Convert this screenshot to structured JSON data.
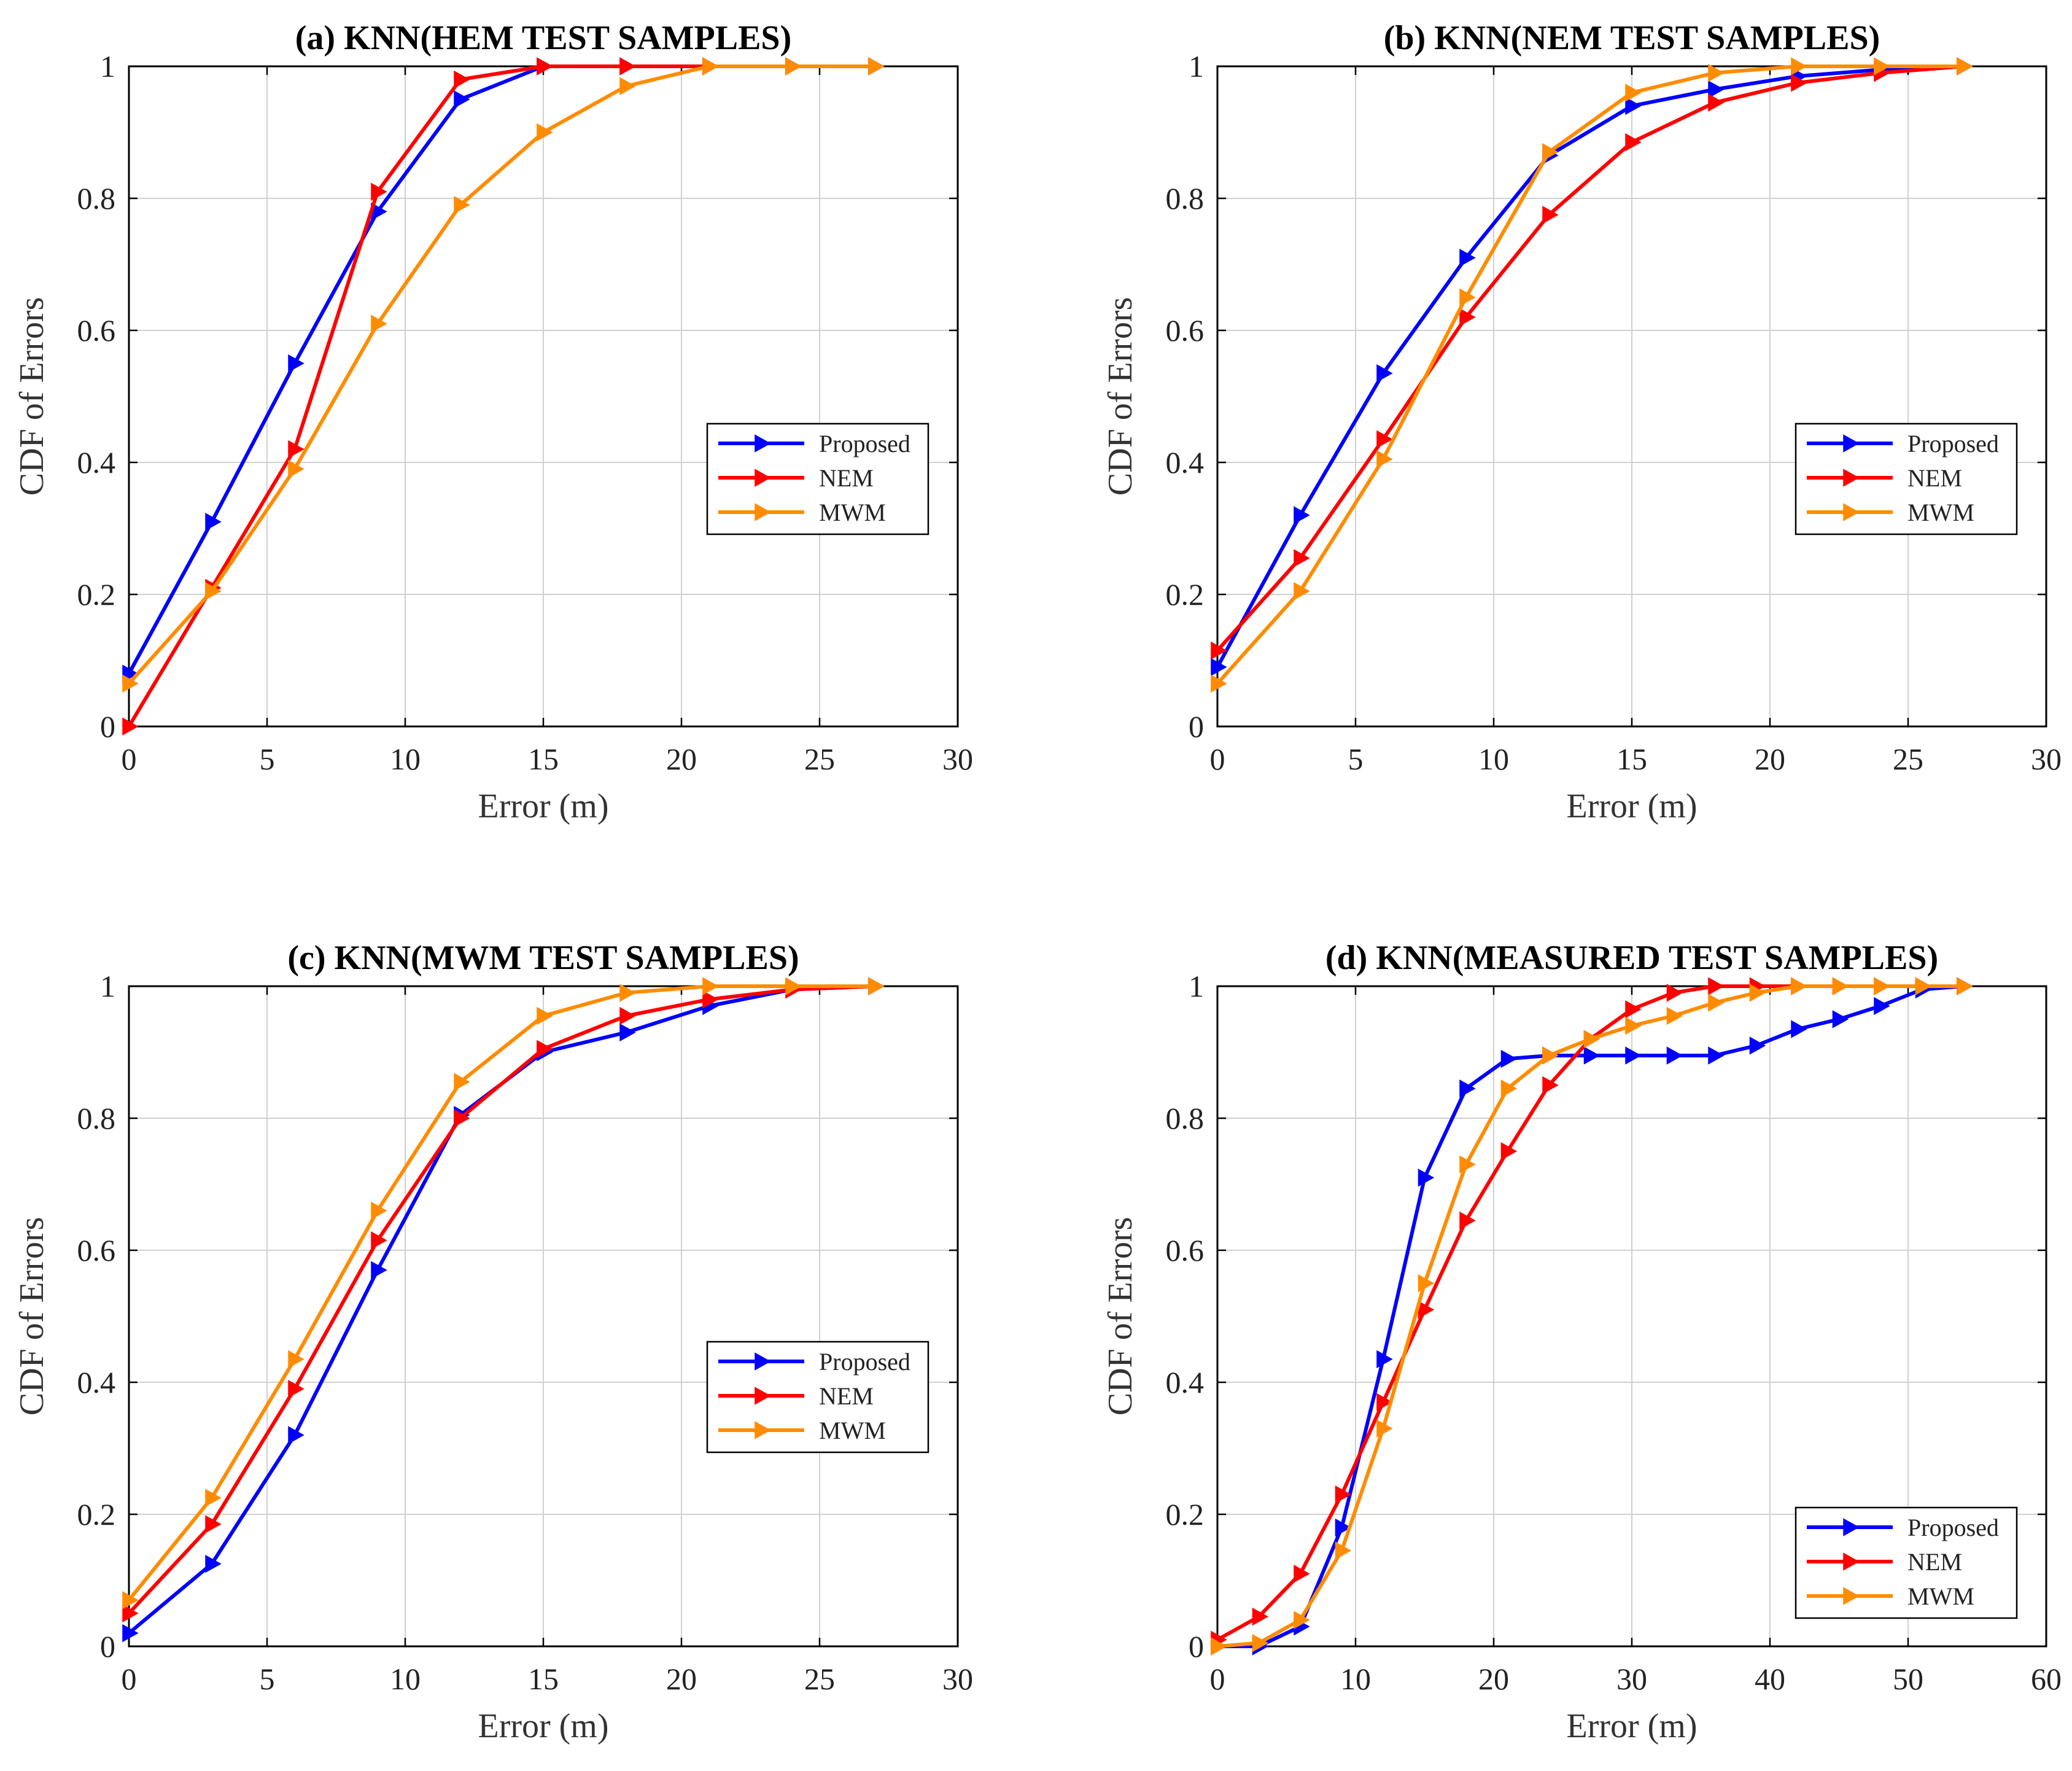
{
  "chart_data": [
    {
      "type": "line",
      "title": "(a) KNN(HEM TEST SAMPLES)",
      "xlabel": "Error (m)",
      "ylabel": "CDF of Errors",
      "xlim": [
        0,
        30
      ],
      "ylim": [
        0,
        1
      ],
      "xticks": [
        "0",
        "5",
        "10",
        "15",
        "20",
        "25",
        "30"
      ],
      "yticks": [
        "0",
        "0.2",
        "0.4",
        "0.6",
        "0.8",
        "1"
      ],
      "grid": true,
      "legend_position": "right-middle",
      "x": [
        0,
        3,
        6,
        9,
        12,
        15,
        18,
        21,
        24,
        27
      ],
      "series": [
        {
          "name": "Proposed",
          "color": "#0000ff",
          "values": [
            0.08,
            0.31,
            0.55,
            0.78,
            0.95,
            1.0,
            1.0,
            1.0,
            1.0,
            1.0
          ]
        },
        {
          "name": "NEM",
          "color": "#ff0000",
          "values": [
            0.0,
            0.21,
            0.42,
            0.81,
            0.98,
            1.0,
            1.0,
            1.0,
            1.0,
            1.0
          ]
        },
        {
          "name": "MWM",
          "color": "#ff8c00",
          "values": [
            0.065,
            0.205,
            0.39,
            0.61,
            0.79,
            0.9,
            0.97,
            1.0,
            1.0,
            1.0
          ]
        }
      ]
    },
    {
      "type": "line",
      "title": "(b) KNN(NEM TEST SAMPLES)",
      "xlabel": "Error (m)",
      "ylabel": "CDF of Errors",
      "xlim": [
        0,
        30
      ],
      "ylim": [
        0,
        1
      ],
      "xticks": [
        "0",
        "5",
        "10",
        "15",
        "20",
        "25",
        "30"
      ],
      "yticks": [
        "0",
        "0.2",
        "0.4",
        "0.6",
        "0.8",
        "1"
      ],
      "grid": true,
      "legend_position": "right-middle",
      "x": [
        0,
        3,
        6,
        9,
        12,
        15,
        18,
        21,
        24,
        27
      ],
      "series": [
        {
          "name": "Proposed",
          "color": "#0000ff",
          "values": [
            0.09,
            0.32,
            0.535,
            0.71,
            0.865,
            0.94,
            0.965,
            0.985,
            0.995,
            1.0
          ]
        },
        {
          "name": "NEM",
          "color": "#ff0000",
          "values": [
            0.115,
            0.255,
            0.435,
            0.62,
            0.775,
            0.885,
            0.945,
            0.975,
            0.99,
            1.0
          ]
        },
        {
          "name": "MWM",
          "color": "#ff8c00",
          "values": [
            0.065,
            0.205,
            0.405,
            0.65,
            0.87,
            0.96,
            0.99,
            1.0,
            1.0,
            1.0
          ]
        }
      ]
    },
    {
      "type": "line",
      "title": "(c) KNN(MWM TEST SAMPLES)",
      "xlabel": "Error (m)",
      "ylabel": "CDF of Errors",
      "xlim": [
        0,
        30
      ],
      "ylim": [
        0,
        1
      ],
      "xticks": [
        "0",
        "5",
        "10",
        "15",
        "20",
        "25",
        "30"
      ],
      "yticks": [
        "0",
        "0.2",
        "0.4",
        "0.6",
        "0.8",
        "1"
      ],
      "grid": true,
      "legend_position": "right-middle",
      "x": [
        0,
        3,
        6,
        9,
        12,
        15,
        18,
        21,
        24,
        27
      ],
      "series": [
        {
          "name": "Proposed",
          "color": "#0000ff",
          "values": [
            0.02,
            0.125,
            0.32,
            0.57,
            0.805,
            0.9,
            0.93,
            0.97,
            0.995,
            1.0
          ]
        },
        {
          "name": "NEM",
          "color": "#ff0000",
          "values": [
            0.05,
            0.185,
            0.39,
            0.615,
            0.8,
            0.905,
            0.955,
            0.98,
            0.995,
            1.0
          ]
        },
        {
          "name": "MWM",
          "color": "#ff8c00",
          "values": [
            0.07,
            0.225,
            0.435,
            0.66,
            0.855,
            0.955,
            0.99,
            1.0,
            1.0,
            1.0
          ]
        }
      ]
    },
    {
      "type": "line",
      "title": "(d) KNN(MEASURED TEST SAMPLES)",
      "xlabel": "Error (m)",
      "ylabel": "CDF of Errors",
      "xlim": [
        0,
        60
      ],
      "ylim": [
        0,
        1
      ],
      "xticks": [
        "0",
        "10",
        "20",
        "30",
        "40",
        "50",
        "60"
      ],
      "yticks": [
        "0",
        "0.2",
        "0.4",
        "0.6",
        "0.8",
        "1"
      ],
      "grid": true,
      "legend_position": "bottom-right",
      "x": [
        0,
        3,
        6,
        9,
        12,
        15,
        18,
        21,
        24,
        27,
        30,
        33,
        36,
        39,
        42,
        45,
        48,
        51,
        54
      ],
      "series": [
        {
          "name": "Proposed",
          "color": "#0000ff",
          "values": [
            0.0,
            0.0,
            0.03,
            0.18,
            0.435,
            0.71,
            0.845,
            0.89,
            0.895,
            0.895,
            0.895,
            0.895,
            0.895,
            0.91,
            0.935,
            0.95,
            0.97,
            0.995,
            1.0
          ]
        },
        {
          "name": "NEM",
          "color": "#ff0000",
          "values": [
            0.01,
            0.045,
            0.11,
            0.23,
            0.37,
            0.51,
            0.645,
            0.75,
            0.85,
            0.92,
            0.965,
            0.99,
            1.0,
            1.0,
            1.0,
            1.0,
            1.0,
            1.0,
            1.0
          ]
        },
        {
          "name": "MWM",
          "color": "#ff8c00",
          "values": [
            0.0,
            0.005,
            0.04,
            0.145,
            0.33,
            0.55,
            0.73,
            0.845,
            0.895,
            0.92,
            0.94,
            0.955,
            0.975,
            0.99,
            1.0,
            1.0,
            1.0,
            1.0,
            1.0
          ]
        }
      ]
    }
  ]
}
